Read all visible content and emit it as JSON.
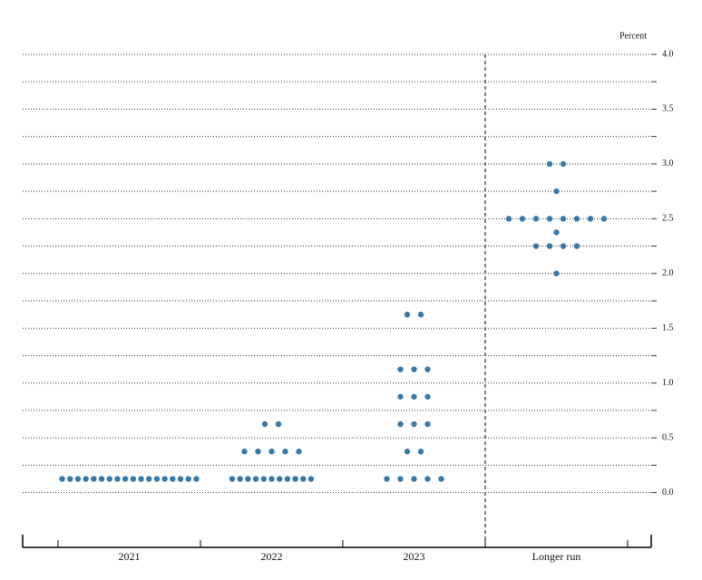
{
  "chart_data": {
    "type": "dot",
    "y_axis_label": "Percent",
    "categories": [
      "2021",
      "2022",
      "2023",
      "Longer run"
    ],
    "values": [
      [
        0.125,
        0.125,
        0.125,
        0.125,
        0.125,
        0.125,
        0.125,
        0.125,
        0.125,
        0.125,
        0.125,
        0.125,
        0.125,
        0.125,
        0.125,
        0.125,
        0.125,
        0.125
      ],
      [
        0.125,
        0.125,
        0.125,
        0.125,
        0.125,
        0.125,
        0.125,
        0.125,
        0.125,
        0.125,
        0.125,
        0.375,
        0.375,
        0.375,
        0.375,
        0.375,
        0.625,
        0.625
      ],
      [
        0.125,
        0.125,
        0.125,
        0.125,
        0.125,
        0.375,
        0.375,
        0.625,
        0.625,
        0.625,
        0.875,
        0.875,
        0.875,
        1.125,
        1.125,
        1.125,
        1.625,
        1.625
      ],
      [
        2.0,
        2.25,
        2.25,
        2.25,
        2.25,
        2.375,
        2.5,
        2.5,
        2.5,
        2.5,
        2.5,
        2.5,
        2.5,
        2.5,
        2.75,
        3.0,
        3.0
      ]
    ],
    "color": "#3a78a6",
    "ylim": [
      -0.5,
      4.0
    ],
    "yticks": [
      {
        "value": 0,
        "label": "0.0"
      },
      {
        "value": 0.5,
        "label": "0.5"
      },
      {
        "value": 1,
        "label": "1.0"
      },
      {
        "value": 1.5,
        "label": "1.5"
      },
      {
        "value": 2,
        "label": "2.0"
      },
      {
        "value": 2.5,
        "label": "2.5"
      },
      {
        "value": 3,
        "label": "3.0"
      },
      {
        "value": 3.5,
        "label": "3.5"
      },
      {
        "value": 4,
        "label": "4.0"
      }
    ],
    "minor_yticks": [
      0.25,
      0.75,
      1.25,
      1.75,
      2.25,
      2.75,
      3.25,
      3.75
    ],
    "grid": true
  }
}
